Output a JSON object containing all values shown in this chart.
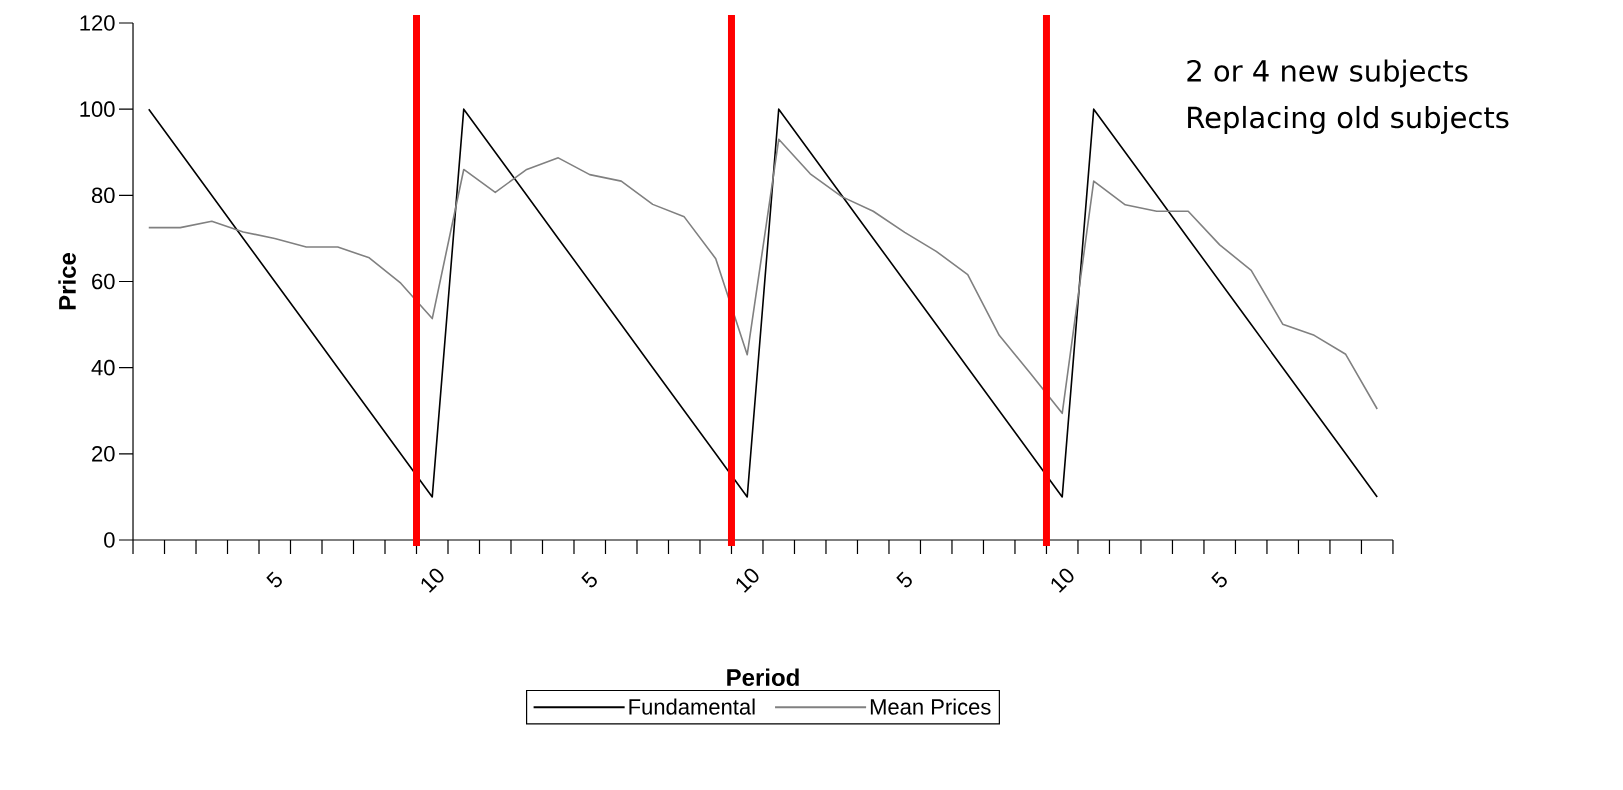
{
  "chart_data": {
    "type": "line",
    "xlabel": "Period",
    "ylabel": "Price",
    "categories": [
      null,
      null,
      null,
      null,
      "5",
      null,
      null,
      null,
      null,
      "10",
      null,
      null,
      null,
      null,
      "5",
      null,
      null,
      null,
      null,
      "10",
      null,
      null,
      null,
      null,
      "5",
      null,
      null,
      null,
      null,
      "10",
      null,
      null,
      null,
      null,
      "5",
      null,
      null,
      null,
      null,
      null
    ],
    "series": [
      {
        "name": "Fundamental",
        "color": "#000000",
        "values": [
          100,
          90,
          80,
          70,
          60,
          50,
          40,
          30,
          20,
          10,
          100,
          90,
          80,
          70,
          60,
          50,
          40,
          30,
          20,
          10,
          100,
          90,
          80,
          70,
          60,
          50,
          40,
          30,
          20,
          10,
          100,
          90,
          80,
          70,
          60,
          50,
          40,
          30,
          20,
          10
        ]
      },
      {
        "name": "Mean Prices",
        "color": "#808080",
        "values": [
          72.5,
          72.5,
          74,
          71.5,
          70,
          68,
          68,
          65.5,
          59.6,
          51.4,
          86,
          80.7,
          86,
          88.7,
          84.8,
          83.3,
          77.9,
          75,
          65.3,
          43,
          93,
          85,
          79.7,
          76.3,
          71.4,
          67,
          61.6,
          47.5,
          38.6,
          29.4,
          83.3,
          77.8,
          76.3,
          76.3,
          68.5,
          62.6,
          50.1,
          47.5,
          43.1,
          30.4
        ]
      }
    ],
    "ylim": [
      0,
      120
    ],
    "yticks": [
      0,
      20,
      40,
      60,
      80,
      100,
      120
    ],
    "annotations": [
      "2 or 4 new subjects",
      "Replacing old subjects"
    ],
    "legend": "bottom"
  }
}
